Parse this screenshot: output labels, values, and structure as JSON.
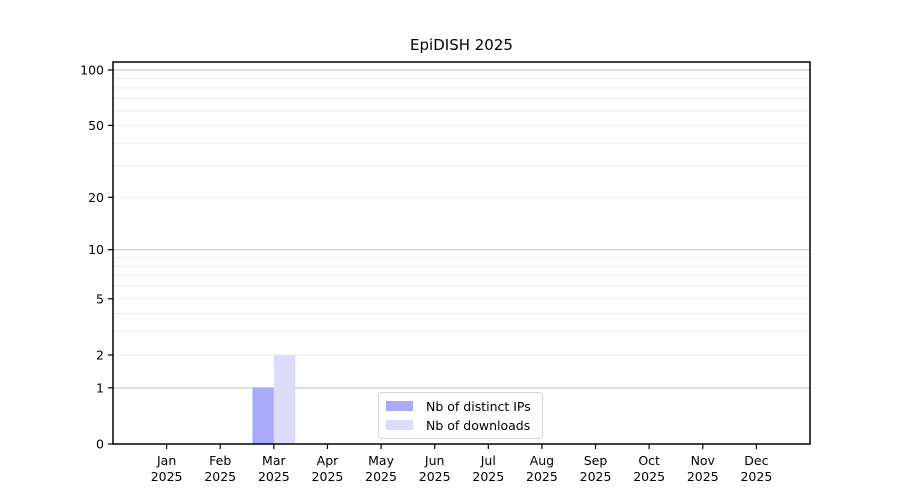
{
  "chart_data": {
    "type": "bar",
    "title": "EpiDISH 2025",
    "x_tick_months": [
      "Jan",
      "Feb",
      "Mar",
      "Apr",
      "May",
      "Jun",
      "Jul",
      "Aug",
      "Sep",
      "Oct",
      "Nov",
      "Dec"
    ],
    "x_tick_year": "2025",
    "series": [
      {
        "name": "Nb of distinct IPs",
        "color": "#a9aaf8",
        "values": [
          0,
          0,
          1,
          0,
          0,
          0,
          0,
          0,
          0,
          0,
          0,
          0
        ]
      },
      {
        "name": "Nb of downloads",
        "color": "#dcdcf8",
        "values": [
          0,
          0,
          2,
          0,
          0,
          0,
          0,
          0,
          0,
          0,
          0,
          0
        ]
      }
    ],
    "yscale": "log10(value+1)",
    "y_tick_values": [
      0,
      1,
      2,
      5,
      10,
      20,
      50,
      100
    ],
    "major_gridlines": [
      1,
      10,
      100
    ],
    "minor_gridlines": [
      2,
      3,
      4,
      5,
      6,
      7,
      8,
      9,
      20,
      30,
      40,
      50,
      60,
      70,
      80,
      90
    ],
    "ylim": [
      0,
      110
    ],
    "grid": true,
    "legend_position": "bottom-center",
    "colors": {
      "major_grid": "#c6c6c6",
      "minor_grid": "#ededed",
      "axis": "#000000",
      "background": "#ffffff"
    }
  }
}
